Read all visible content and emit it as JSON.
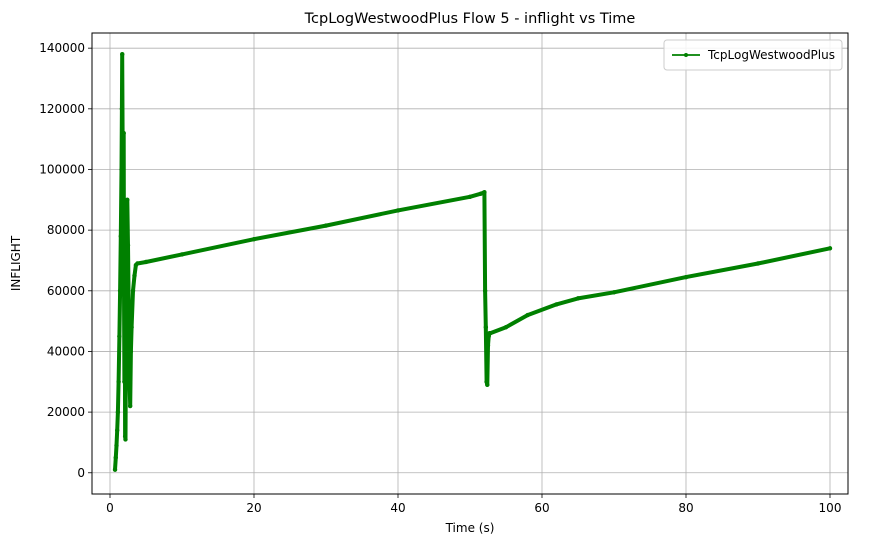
{
  "chart_data": {
    "type": "line",
    "title": "TcpLogWestwoodPlus Flow 5 - inflight vs Time",
    "xlabel": "Time (s)",
    "ylabel": "INFLIGHT",
    "xlim": [
      -2.5,
      102.5
    ],
    "ylim": [
      -7000,
      145000
    ],
    "xticks": [
      0,
      20,
      40,
      60,
      80,
      100
    ],
    "yticks": [
      0,
      20000,
      40000,
      60000,
      80000,
      100000,
      120000,
      140000
    ],
    "grid": true,
    "legend_position": "top-right",
    "series": [
      {
        "name": "TcpLogWestwoodPlus",
        "color": "#008000",
        "marker": "point",
        "x": [
          0.7,
          0.8,
          0.9,
          1.0,
          1.1,
          1.2,
          1.3,
          1.4,
          1.5,
          1.6,
          1.65,
          1.7,
          1.75,
          1.8,
          1.85,
          1.9,
          1.95,
          2.0,
          2.05,
          2.1,
          2.15,
          2.2,
          2.3,
          2.4,
          2.5,
          2.6,
          2.7,
          2.8,
          2.9,
          3.0,
          3.2,
          3.4,
          3.6,
          3.8,
          5,
          10,
          20,
          30,
          40,
          50,
          51.5,
          52.0,
          52.1,
          52.2,
          52.3,
          52.4,
          52.5,
          52.6,
          52.7,
          52.8,
          55,
          58,
          62,
          65,
          70,
          80,
          90,
          100
        ],
        "y": [
          1000,
          5000,
          9000,
          14000,
          20000,
          30000,
          45000,
          60000,
          78000,
          100000,
          120000,
          138000,
          112000,
          70000,
          100000,
          112000,
          60000,
          30000,
          55000,
          12000,
          11000,
          30000,
          60000,
          90000,
          75000,
          55000,
          32000,
          22000,
          40000,
          48000,
          60000,
          65000,
          68500,
          69000,
          69500,
          72000,
          77000,
          81500,
          86500,
          91000,
          92000,
          92500,
          60000,
          48000,
          30000,
          29000,
          42000,
          45000,
          46000,
          46000,
          48000,
          52000,
          55500,
          57500,
          59500,
          64500,
          69000,
          74000
        ]
      }
    ]
  }
}
